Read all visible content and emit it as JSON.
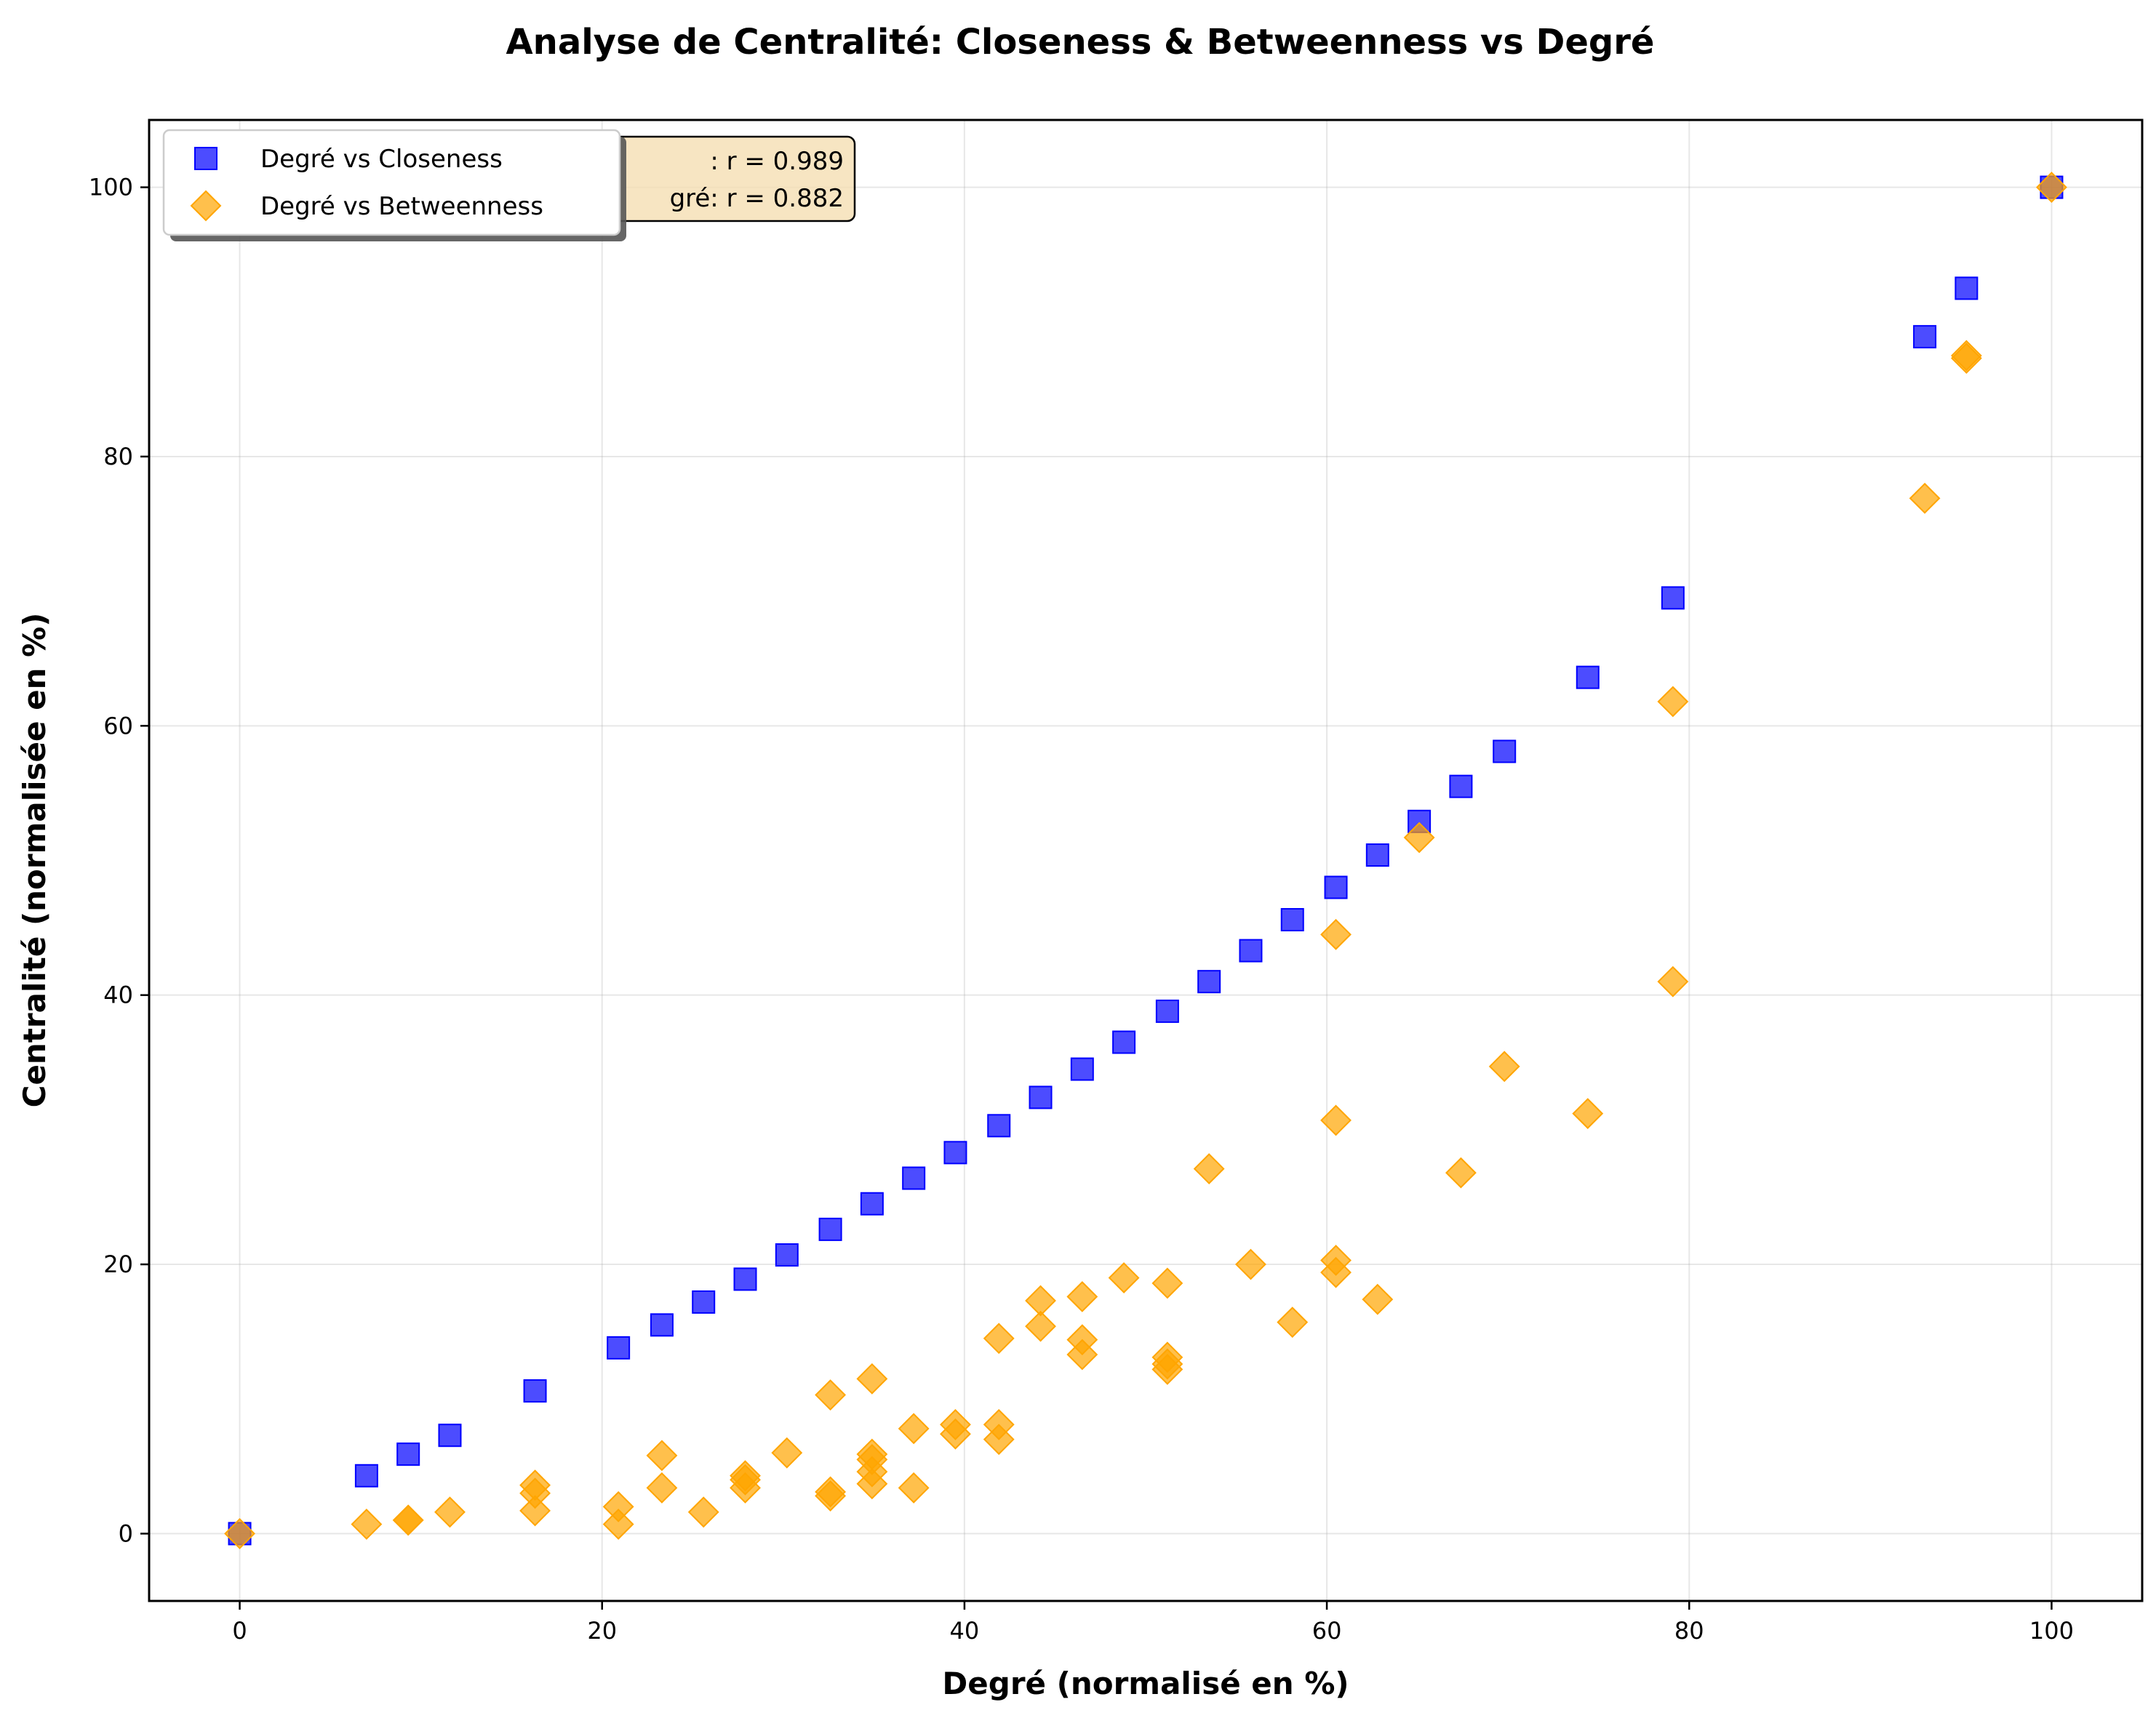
{
  "chart_data": {
    "type": "scatter",
    "title": "Analyse de Centralité: Closeness & Betweenness vs Degré",
    "xlabel": "Degré (normalisé en %)",
    "ylabel": "Centralité (normalisée en %)",
    "xlim": [
      -5,
      105
    ],
    "ylim": [
      -5,
      105
    ],
    "xticks": [
      "0",
      "20",
      "40",
      "60",
      "80",
      "100"
    ],
    "yticks": [
      "0",
      "20",
      "40",
      "60",
      "80",
      "100"
    ],
    "grid": true,
    "legend_position": "top-left",
    "annotation_lines": [
      ": r = 0.989",
      "gré: r = 0.882"
    ],
    "series": [
      {
        "name": "Degré vs Closeness",
        "marker": "square",
        "color": "#0000ff",
        "points": [
          [
            0,
            0
          ],
          [
            7,
            4.3
          ],
          [
            9.3,
            5.9
          ],
          [
            11.6,
            7.3
          ],
          [
            16.3,
            10.6
          ],
          [
            20.9,
            13.8
          ],
          [
            23.3,
            15.5
          ],
          [
            25.6,
            17.2
          ],
          [
            27.9,
            18.9
          ],
          [
            30.2,
            20.7
          ],
          [
            32.6,
            22.6
          ],
          [
            34.9,
            24.5
          ],
          [
            37.2,
            26.4
          ],
          [
            39.5,
            28.3
          ],
          [
            41.9,
            30.3
          ],
          [
            44.2,
            32.4
          ],
          [
            46.5,
            34.5
          ],
          [
            48.8,
            36.5
          ],
          [
            51.2,
            38.8
          ],
          [
            53.5,
            41
          ],
          [
            55.8,
            43.3
          ],
          [
            58.1,
            45.6
          ],
          [
            60.5,
            48
          ],
          [
            62.8,
            50.4
          ],
          [
            65.1,
            52.9
          ],
          [
            67.4,
            55.5
          ],
          [
            69.8,
            58.1
          ],
          [
            74.4,
            63.6
          ],
          [
            79.1,
            69.5
          ],
          [
            93,
            88.9
          ],
          [
            95.3,
            92.5
          ],
          [
            100,
            100
          ]
        ]
      },
      {
        "name": "Degré vs Betweenness",
        "marker": "diamond",
        "color": "#ffa500",
        "points": [
          [
            0,
            0
          ],
          [
            7,
            0.7
          ],
          [
            9.3,
            1
          ],
          [
            9.3,
            1
          ],
          [
            11.6,
            1.6
          ],
          [
            16.3,
            1.7
          ],
          [
            16.3,
            3
          ],
          [
            16.3,
            3.6
          ],
          [
            20.9,
            0.7
          ],
          [
            20.9,
            2
          ],
          [
            23.3,
            3.4
          ],
          [
            23.3,
            5.8
          ],
          [
            25.6,
            1.6
          ],
          [
            27.9,
            3.4
          ],
          [
            27.9,
            4
          ],
          [
            27.9,
            4.3
          ],
          [
            30.2,
            6
          ],
          [
            32.6,
            2.8
          ],
          [
            32.6,
            3.1
          ],
          [
            32.6,
            10.3
          ],
          [
            34.9,
            3.7
          ],
          [
            34.9,
            4.6
          ],
          [
            34.9,
            5.5
          ],
          [
            34.9,
            5.9
          ],
          [
            34.9,
            11.5
          ],
          [
            37.2,
            3.4
          ],
          [
            37.2,
            7.8
          ],
          [
            39.5,
            7.4
          ],
          [
            39.5,
            8.1
          ],
          [
            41.9,
            7
          ],
          [
            41.9,
            8.1
          ],
          [
            41.9,
            14.5
          ],
          [
            44.2,
            15.4
          ],
          [
            44.2,
            17.3
          ],
          [
            46.5,
            13.3
          ],
          [
            46.5,
            14.4
          ],
          [
            46.5,
            17.6
          ],
          [
            48.8,
            19
          ],
          [
            51.2,
            12.2
          ],
          [
            51.2,
            12.6
          ],
          [
            51.2,
            13.1
          ],
          [
            51.2,
            18.6
          ],
          [
            53.5,
            27.1
          ],
          [
            55.8,
            20
          ],
          [
            58.1,
            15.7
          ],
          [
            60.5,
            19.4
          ],
          [
            60.5,
            20.3
          ],
          [
            60.5,
            30.7
          ],
          [
            60.5,
            44.5
          ],
          [
            62.8,
            17.4
          ],
          [
            65.1,
            51.7
          ],
          [
            67.4,
            26.8
          ],
          [
            69.8,
            34.7
          ],
          [
            74.4,
            31.2
          ],
          [
            79.1,
            41
          ],
          [
            79.1,
            61.8
          ],
          [
            93,
            76.9
          ],
          [
            95.3,
            87.3
          ],
          [
            95.3,
            87.5
          ],
          [
            100,
            100
          ]
        ]
      }
    ]
  }
}
